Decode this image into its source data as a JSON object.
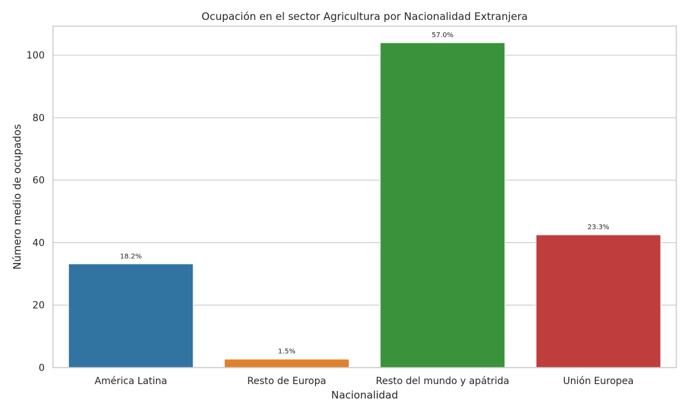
{
  "chart_data": {
    "type": "bar",
    "title": "Ocupación en el sector Agricultura por Nacionalidad Extranjera",
    "xlabel": "Nacionalidad",
    "ylabel": "Número medio de ocupados",
    "categories": [
      "América Latina",
      "Resto de Europa",
      "Resto del mundo y apátrida",
      "Unión Europea"
    ],
    "values": [
      33.2,
      2.7,
      104.0,
      42.5
    ],
    "data_labels": [
      "18.2%",
      "1.5%",
      "57.0%",
      "23.3%"
    ],
    "colors": [
      "#3274a1",
      "#e1812c",
      "#3a923a",
      "#c03d3e"
    ],
    "ylim": [
      0,
      109.3
    ],
    "yticks": [
      0,
      20,
      40,
      60,
      80,
      100
    ],
    "grid": true,
    "legend": "none"
  }
}
